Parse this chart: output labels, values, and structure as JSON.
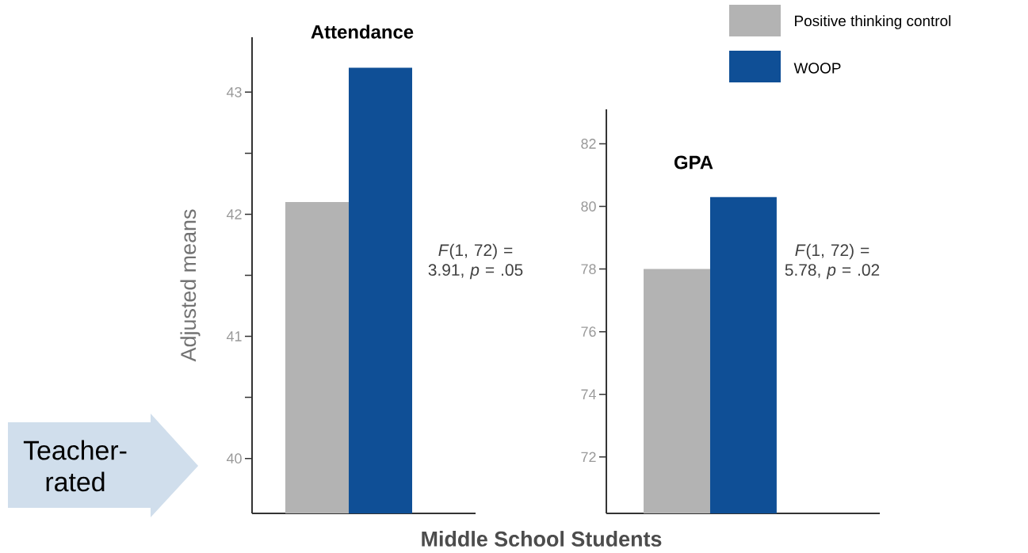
{
  "chart_data": [
    {
      "type": "bar",
      "title": "Attendance",
      "xlabel": "Middle School Students",
      "ylabel": "Adjusted means",
      "categories": [
        null
      ],
      "series": [
        {
          "color": "#b3b3b3",
          "values": [
            42.1
          ]
        },
        {
          "color": "#0f4f96",
          "values": [
            43.2
          ]
        }
      ],
      "ylim": [
        39.55,
        43.45
      ],
      "yticks": [
        40,
        {
          "value": 40.5,
          "label": null
        },
        41,
        {
          "value": 41.5,
          "label": null
        },
        42,
        {
          "value": 42.5,
          "label": null
        },
        43
      ],
      "annotations": [
        "*F*(1, 72) = 3.91, *p* = .05",
        "Teacher-rated"
      ]
    },
    {
      "type": "bar",
      "title": "GPA",
      "categories": [
        null
      ],
      "series": [
        {
          "name": "Positive thinking control",
          "color": "#b3b3b3",
          "values": [
            78.0
          ]
        },
        {
          "name": "WOOP",
          "color": "#0f4f96",
          "values": [
            80.3
          ]
        }
      ],
      "ylim": [
        70.2,
        83.1
      ],
      "yticks": [
        72,
        74,
        76,
        78,
        80,
        82
      ],
      "legend": "top right",
      "annotations": [
        "*F*(1, 72) = 5.78, *p* = .02"
      ]
    }
  ]
}
